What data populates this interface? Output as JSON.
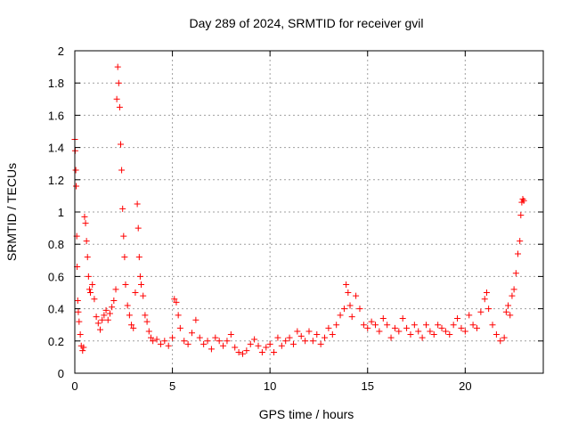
{
  "chart_data": {
    "type": "scatter",
    "title": "Day 289 of 2024, SRMTID for receiver gvil",
    "xlabel": "GPS time / hours",
    "ylabel": "SRMTID / TECUs",
    "xlim": [
      0,
      24
    ],
    "ylim": [
      0,
      2
    ],
    "xticks": [
      0,
      5,
      10,
      15,
      20
    ],
    "xtick_labels": [
      "0",
      "5",
      "10",
      "15",
      "20"
    ],
    "yticks": [
      0,
      0.2,
      0.4,
      0.6,
      0.8,
      1,
      1.2,
      1.4,
      1.6,
      1.8,
      2
    ],
    "ytick_labels": [
      "0",
      "0.2",
      "0.4",
      "0.6",
      "0.8",
      "1",
      "1.2",
      "1.4",
      "1.6",
      "1.8",
      "2"
    ],
    "grid": true,
    "marker": "+",
    "marker_color": "#ff0000",
    "series": [
      {
        "name": "SRMTID",
        "points": [
          [
            0.0,
            1.45
          ],
          [
            0.02,
            1.38
          ],
          [
            0.05,
            1.26
          ],
          [
            0.07,
            1.16
          ],
          [
            0.1,
            0.85
          ],
          [
            0.12,
            0.66
          ],
          [
            0.15,
            0.45
          ],
          [
            0.18,
            0.38
          ],
          [
            0.22,
            0.32
          ],
          [
            0.28,
            0.24
          ],
          [
            0.33,
            0.17
          ],
          [
            0.4,
            0.14
          ],
          [
            0.45,
            0.16
          ],
          [
            0.5,
            0.97
          ],
          [
            0.55,
            0.93
          ],
          [
            0.6,
            0.82
          ],
          [
            0.65,
            0.72
          ],
          [
            0.7,
            0.6
          ],
          [
            0.75,
            0.52
          ],
          [
            0.8,
            0.5
          ],
          [
            0.9,
            0.55
          ],
          [
            1.0,
            0.46
          ],
          [
            1.1,
            0.35
          ],
          [
            1.2,
            0.31
          ],
          [
            1.3,
            0.27
          ],
          [
            1.4,
            0.33
          ],
          [
            1.5,
            0.36
          ],
          [
            1.6,
            0.39
          ],
          [
            1.7,
            0.33
          ],
          [
            1.8,
            0.37
          ],
          [
            1.9,
            0.41
          ],
          [
            2.0,
            0.45
          ],
          [
            2.1,
            0.52
          ],
          [
            2.15,
            1.7
          ],
          [
            2.2,
            1.9
          ],
          [
            2.25,
            1.8
          ],
          [
            2.3,
            1.65
          ],
          [
            2.35,
            1.42
          ],
          [
            2.4,
            1.26
          ],
          [
            2.45,
            1.02
          ],
          [
            2.5,
            0.85
          ],
          [
            2.55,
            0.72
          ],
          [
            2.6,
            0.55
          ],
          [
            2.7,
            0.42
          ],
          [
            2.8,
            0.36
          ],
          [
            2.9,
            0.3
          ],
          [
            3.0,
            0.28
          ],
          [
            3.1,
            0.5
          ],
          [
            3.2,
            1.05
          ],
          [
            3.25,
            0.9
          ],
          [
            3.3,
            0.72
          ],
          [
            3.35,
            0.6
          ],
          [
            3.4,
            0.55
          ],
          [
            3.5,
            0.48
          ],
          [
            3.6,
            0.36
          ],
          [
            3.7,
            0.32
          ],
          [
            3.8,
            0.26
          ],
          [
            3.9,
            0.22
          ],
          [
            4.0,
            0.2
          ],
          [
            4.2,
            0.21
          ],
          [
            4.4,
            0.18
          ],
          [
            4.6,
            0.2
          ],
          [
            4.8,
            0.17
          ],
          [
            5.0,
            0.22
          ],
          [
            5.1,
            0.46
          ],
          [
            5.2,
            0.44
          ],
          [
            5.3,
            0.36
          ],
          [
            5.4,
            0.28
          ],
          [
            5.6,
            0.2
          ],
          [
            5.8,
            0.18
          ],
          [
            6.0,
            0.25
          ],
          [
            6.2,
            0.33
          ],
          [
            6.4,
            0.22
          ],
          [
            6.6,
            0.18
          ],
          [
            6.8,
            0.2
          ],
          [
            7.0,
            0.15
          ],
          [
            7.2,
            0.22
          ],
          [
            7.4,
            0.2
          ],
          [
            7.6,
            0.17
          ],
          [
            7.8,
            0.2
          ],
          [
            8.0,
            0.24
          ],
          [
            8.2,
            0.16
          ],
          [
            8.4,
            0.13
          ],
          [
            8.6,
            0.12
          ],
          [
            8.8,
            0.14
          ],
          [
            9.0,
            0.18
          ],
          [
            9.2,
            0.21
          ],
          [
            9.4,
            0.17
          ],
          [
            9.6,
            0.13
          ],
          [
            9.8,
            0.16
          ],
          [
            10.0,
            0.18
          ],
          [
            10.2,
            0.13
          ],
          [
            10.4,
            0.22
          ],
          [
            10.6,
            0.17
          ],
          [
            10.8,
            0.2
          ],
          [
            11.0,
            0.22
          ],
          [
            11.2,
            0.18
          ],
          [
            11.4,
            0.26
          ],
          [
            11.6,
            0.23
          ],
          [
            11.8,
            0.2
          ],
          [
            12.0,
            0.26
          ],
          [
            12.2,
            0.2
          ],
          [
            12.4,
            0.24
          ],
          [
            12.6,
            0.18
          ],
          [
            12.8,
            0.22
          ],
          [
            13.0,
            0.28
          ],
          [
            13.2,
            0.24
          ],
          [
            13.4,
            0.3
          ],
          [
            13.6,
            0.36
          ],
          [
            13.8,
            0.4
          ],
          [
            13.9,
            0.55
          ],
          [
            14.0,
            0.5
          ],
          [
            14.1,
            0.42
          ],
          [
            14.2,
            0.35
          ],
          [
            14.4,
            0.48
          ],
          [
            14.6,
            0.4
          ],
          [
            14.8,
            0.3
          ],
          [
            15.0,
            0.28
          ],
          [
            15.2,
            0.32
          ],
          [
            15.4,
            0.3
          ],
          [
            15.6,
            0.26
          ],
          [
            15.8,
            0.34
          ],
          [
            16.0,
            0.3
          ],
          [
            16.2,
            0.22
          ],
          [
            16.4,
            0.28
          ],
          [
            16.6,
            0.26
          ],
          [
            16.8,
            0.34
          ],
          [
            17.0,
            0.28
          ],
          [
            17.2,
            0.24
          ],
          [
            17.4,
            0.3
          ],
          [
            17.6,
            0.26
          ],
          [
            17.8,
            0.22
          ],
          [
            18.0,
            0.3
          ],
          [
            18.2,
            0.26
          ],
          [
            18.4,
            0.24
          ],
          [
            18.6,
            0.3
          ],
          [
            18.8,
            0.28
          ],
          [
            19.0,
            0.26
          ],
          [
            19.2,
            0.24
          ],
          [
            19.4,
            0.3
          ],
          [
            19.6,
            0.34
          ],
          [
            19.8,
            0.28
          ],
          [
            20.0,
            0.26
          ],
          [
            20.2,
            0.36
          ],
          [
            20.4,
            0.3
          ],
          [
            20.6,
            0.28
          ],
          [
            20.8,
            0.38
          ],
          [
            21.0,
            0.46
          ],
          [
            21.1,
            0.5
          ],
          [
            21.2,
            0.4
          ],
          [
            21.4,
            0.3
          ],
          [
            21.6,
            0.24
          ],
          [
            21.8,
            0.2
          ],
          [
            22.0,
            0.22
          ],
          [
            22.1,
            0.38
          ],
          [
            22.2,
            0.42
          ],
          [
            22.3,
            0.36
          ],
          [
            22.4,
            0.48
          ],
          [
            22.5,
            0.52
          ],
          [
            22.6,
            0.62
          ],
          [
            22.7,
            0.74
          ],
          [
            22.8,
            0.82
          ],
          [
            22.85,
            0.98
          ],
          [
            22.9,
            1.06
          ],
          [
            22.95,
            1.08
          ],
          [
            23.0,
            1.07
          ]
        ]
      }
    ]
  }
}
